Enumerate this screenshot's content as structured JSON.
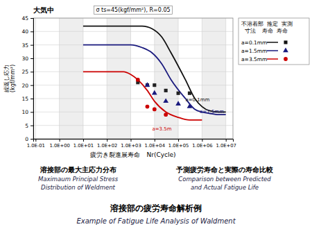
{
  "chart_data": {
    "type": "line",
    "title": "溶接部の疲労寿命解析例",
    "subtitle": "Example of Fatigue Life Analysis of Waldment",
    "xlabel": "疲労き裂進展寿命　Nr(Cycle)",
    "ylabel": "繰返し応力\n(kgf/mm²)",
    "log": "x",
    "grid": true,
    "legend": "right",
    "legend_header": [
      "不溶着部  推定  実測",
      "  寸法    寿命  寿命"
    ],
    "xlim": [
      0.08,
      20000000
    ],
    "xticks": [
      {
        "value": 0.1,
        "label": "1.0E-01"
      },
      {
        "value": 1,
        "label": "1.0E+00"
      },
      {
        "value": 10,
        "label": "1.0E+01"
      },
      {
        "value": 100,
        "label": "1.0E+02"
      },
      {
        "value": 1000,
        "label": "1.0E+03"
      },
      {
        "value": 10000,
        "label": "1.0E+04"
      },
      {
        "value": 100000,
        "label": "1.0E+05"
      },
      {
        "value": 1000000,
        "label": "1.0E+06"
      },
      {
        "value": 10000000,
        "label": "1.0E+07"
      }
    ],
    "ylim": [
      0,
      45
    ],
    "yticks": [
      0,
      5,
      10,
      15,
      20,
      25,
      30,
      35,
      40,
      45
    ],
    "shaded_x_ranges": [
      [
        1,
        10
      ],
      [
        100,
        1000
      ],
      [
        10000,
        100000
      ],
      [
        1000000,
        10000000
      ]
    ],
    "series": [
      {
        "name": "a=0.1mm",
        "type": "line",
        "color": "#111111",
        "x": [
          10,
          500,
          1000,
          3000,
          8000,
          20000,
          50000,
          200000,
          500000,
          1000000,
          2000000,
          5000000,
          10000000
        ],
        "values": [
          42,
          42,
          42,
          42,
          41,
          38,
          32,
          22,
          15,
          12,
          10.5,
          10,
          10
        ]
      },
      {
        "name": "a=1.5mm",
        "type": "line",
        "color": "#1a1a7e",
        "x": [
          10,
          500,
          1000,
          3000,
          8000,
          20000,
          50000,
          200000,
          500000,
          1000000,
          2000000,
          5000000,
          10000000
        ],
        "values": [
          35,
          35,
          35,
          34,
          32,
          28,
          22,
          15,
          11,
          10,
          9.5,
          9,
          9
        ]
      },
      {
        "name": "a=3.5mm",
        "type": "line",
        "color": "#cc0000",
        "x": [
          10,
          500,
          1000,
          2000,
          5000,
          10000,
          30000,
          100000,
          300000,
          1000000
        ],
        "values": [
          25,
          25,
          24,
          22,
          18,
          14,
          10,
          8,
          7,
          7
        ]
      },
      {
        "name": "a=0.1mm",
        "type": "scatter",
        "color": "#222222",
        "marker": "square",
        "x": [
          2000,
          5000,
          10000,
          30000,
          100000,
          300000
        ],
        "values": [
          21,
          20,
          20,
          18,
          17,
          17
        ]
      },
      {
        "name": "a=1.5mm",
        "type": "scatter",
        "color": "#1a1a7e",
        "marker": "triangle",
        "x": [
          5000,
          10000,
          30000,
          100000,
          300000
        ],
        "values": [
          20,
          17,
          14,
          13,
          12
        ]
      },
      {
        "name": "a=3.5mm",
        "type": "scatter",
        "color": "#cc0000",
        "marker": "circle",
        "x": [
          2000,
          5000,
          10000,
          30000
        ],
        "values": [
          22,
          12,
          11,
          9
        ]
      }
    ],
    "annotations": [
      {
        "text": "大気中"
      },
      {
        "text": "σ ts=45(kgf/mm²), R=0.05"
      },
      {
        "text": "a=0.1mm",
        "x": 200000,
        "y": 14,
        "color": "#111111"
      },
      {
        "text": "a=1.5mm",
        "x": 800000,
        "y": 9.5,
        "color": "#1a1a7e"
      },
      {
        "text": "a=3.5m",
        "x": 8000,
        "y": 3.0,
        "color": "#cc0000"
      }
    ],
    "captions": [
      {
        "title": "溶接部の最大主応力分布",
        "lines": [
          "Maximaum Principal Stress",
          "Distribution of Weldment"
        ]
      },
      {
        "title": "予測疲労寿命と実際の寿命比較",
        "lines": [
          "Comparison between Predicted",
          "and Actual Fatigue Life"
        ]
      }
    ]
  }
}
